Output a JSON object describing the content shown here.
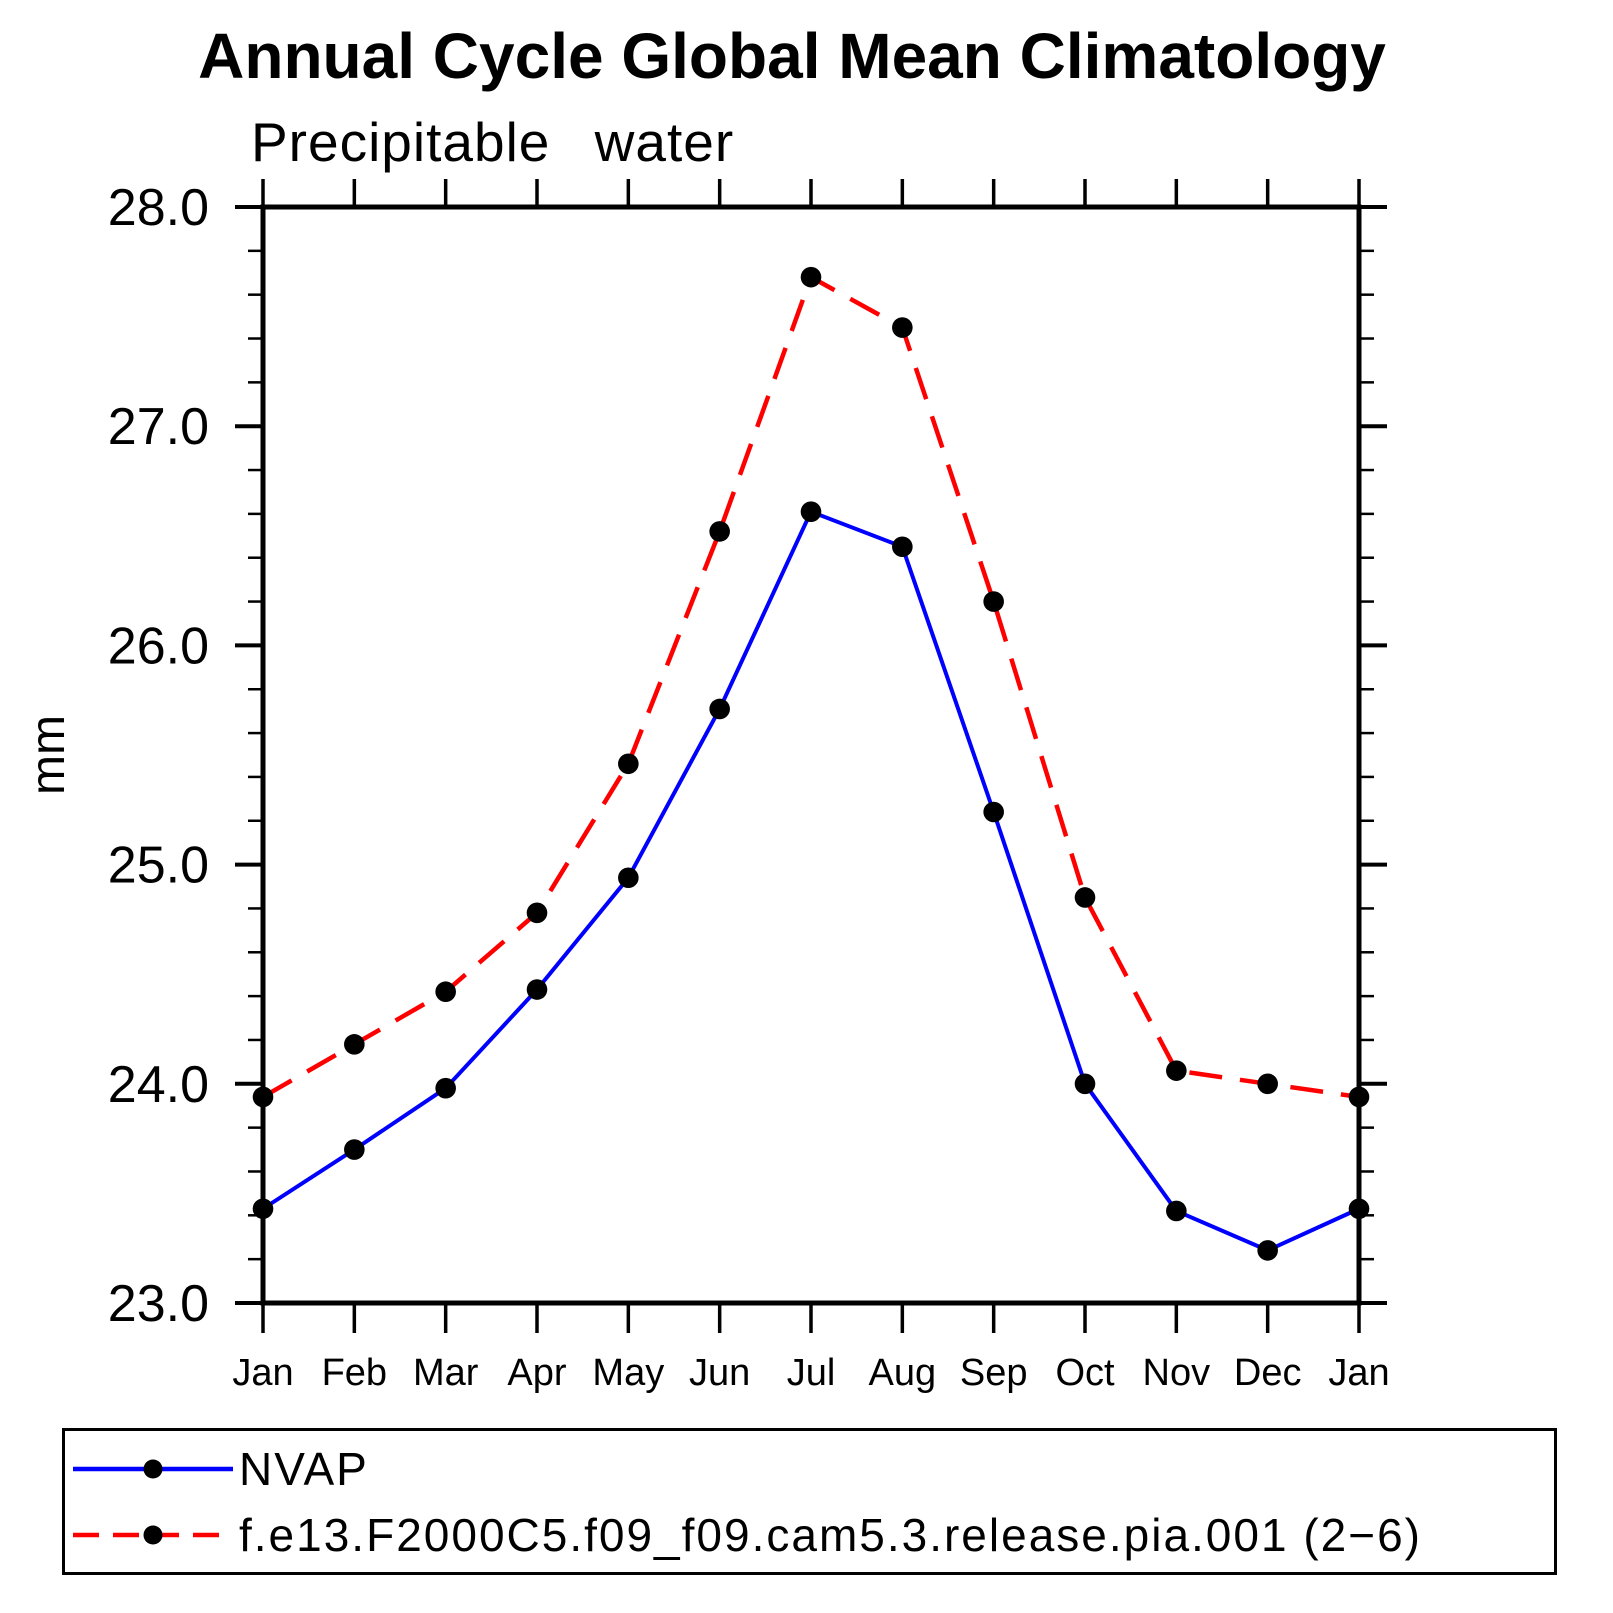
{
  "chart_data": {
    "type": "line",
    "title": "Annual Cycle Global Mean Climatology",
    "subtitle": "Precipitable water",
    "ylabel": "mm",
    "ylim": [
      23.0,
      28.0
    ],
    "ytick_major": 1.0,
    "ytick_minor": 0.2,
    "ytick_labels": [
      "23.0",
      "24.0",
      "25.0",
      "26.0",
      "27.0",
      "28.0"
    ],
    "categories": [
      "Jan",
      "Feb",
      "Mar",
      "Apr",
      "May",
      "Jun",
      "Jul",
      "Aug",
      "Sep",
      "Oct",
      "Nov",
      "Dec",
      "Jan"
    ],
    "series": [
      {
        "name": "NVAP",
        "color": "#0000ff",
        "line_style": "solid",
        "marker": "filled-circle",
        "marker_color": "#000000",
        "values": [
          23.43,
          23.7,
          23.98,
          24.43,
          24.94,
          25.71,
          26.61,
          26.45,
          25.24,
          24.0,
          23.42,
          23.24,
          23.43
        ]
      },
      {
        "name": "f.e13.F2000C5.f09_f09.cam5.3.release.pia.001 (2−6)",
        "color": "#ff0000",
        "line_style": "dashed",
        "marker": "filled-circle",
        "marker_color": "#000000",
        "values": [
          23.94,
          24.18,
          24.42,
          24.78,
          25.46,
          26.52,
          27.68,
          27.45,
          26.2,
          24.85,
          24.06,
          24.0,
          23.94
        ]
      }
    ],
    "legend_position": "bottom",
    "grid": false,
    "frame": "box-with-outward-ticks"
  }
}
